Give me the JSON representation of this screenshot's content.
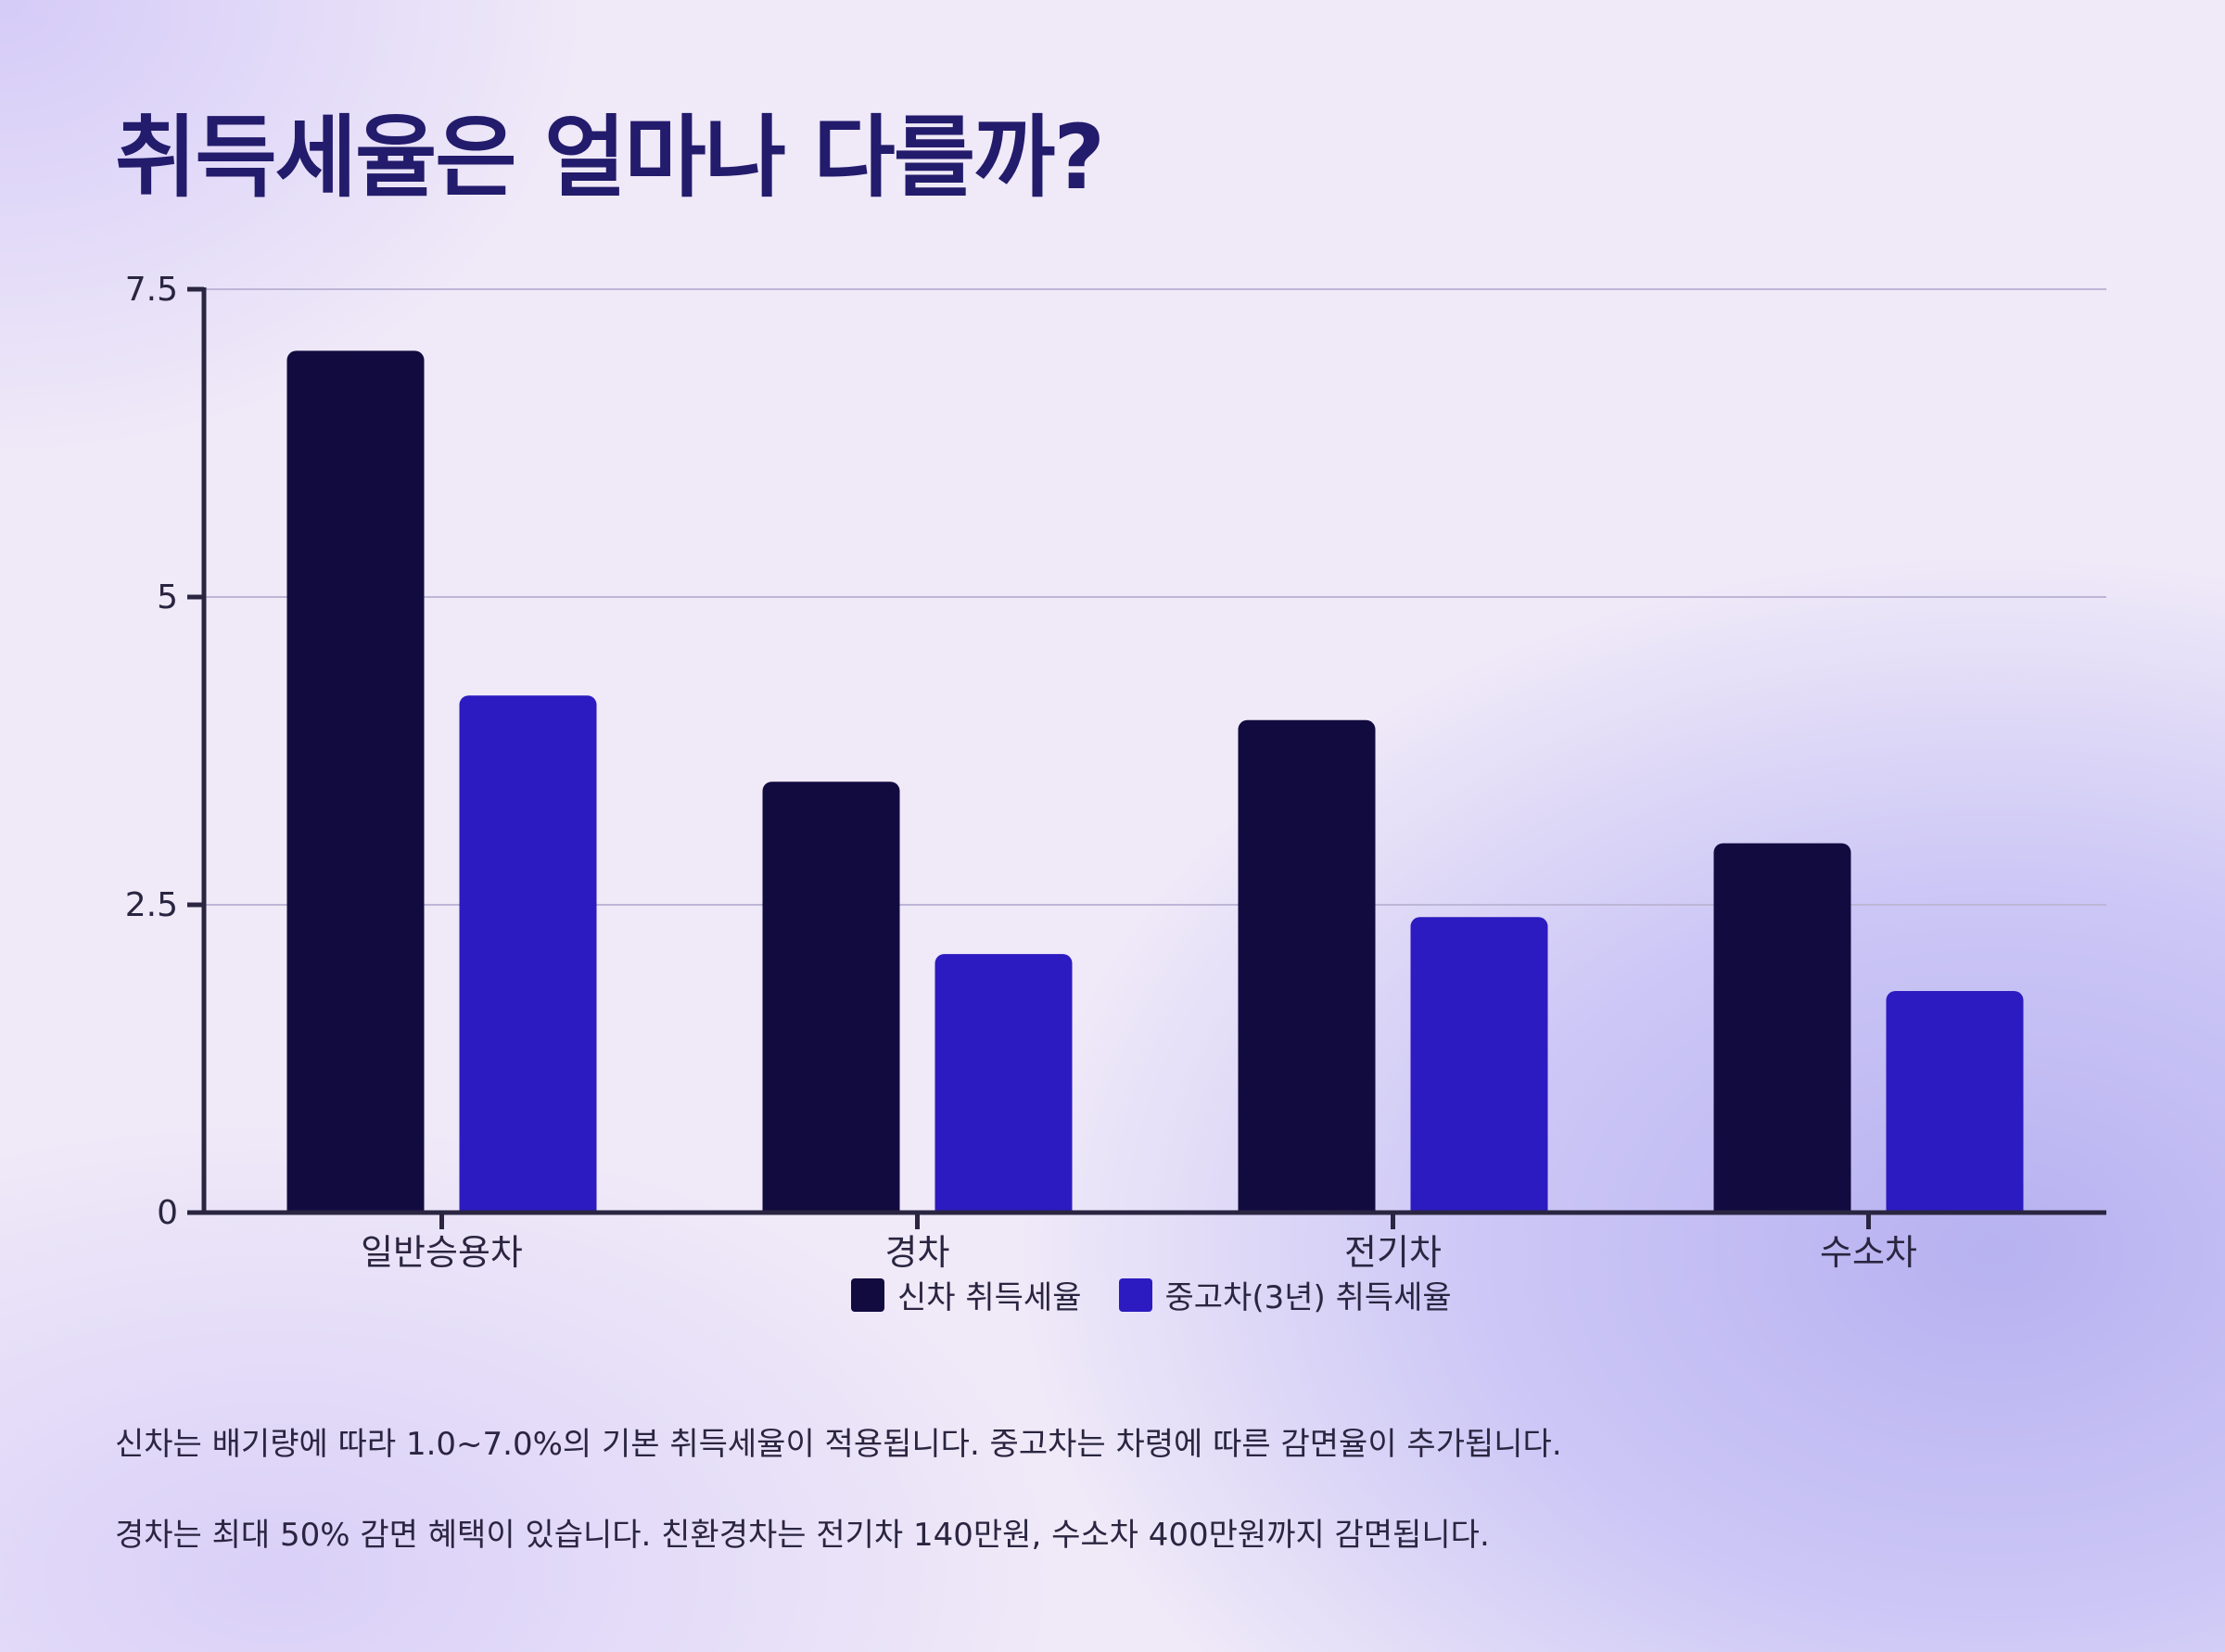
{
  "title": "취득세율은 얼마나 다를까?",
  "chart_data": {
    "type": "bar",
    "categories": [
      "일반승용차",
      "경차",
      "전기차",
      "수소차"
    ],
    "series": [
      {
        "name": "신차 취득세율",
        "values": [
          7.0,
          3.5,
          4.0,
          3.0
        ],
        "color": "#120b40"
      },
      {
        "name": "중고차(3년) 취득세율",
        "values": [
          4.2,
          2.1,
          2.4,
          1.8
        ],
        "color": "#2c1bc0"
      }
    ],
    "ylim": [
      0,
      7.5
    ],
    "yticks": [
      0,
      2.5,
      5,
      7.5
    ],
    "ytick_labels": [
      "0",
      "2.5",
      "5",
      "7.5"
    ],
    "grid": true,
    "legend_position": "bottom-center",
    "xlabel": "",
    "ylabel": ""
  },
  "notes": [
    "신차는 배기량에 따라 1.0~7.0%의 기본 취득세율이 적용됩니다. 중고차는 차령에 따른 감면율이 추가됩니다.",
    "경차는 최대 50% 감면 혜택이 있습니다. 친환경차는 전기차 140만원, 수소차 400만원까지 감면됩니다."
  ]
}
